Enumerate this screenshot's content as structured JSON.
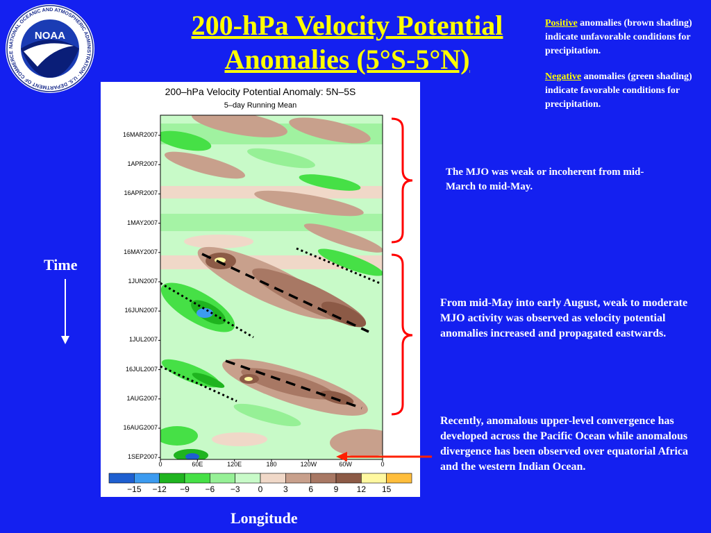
{
  "logo": {
    "text": "NOAA",
    "ring_text": "NATIONAL OCEANIC AND ATMOSPHERIC ADMINISTRATION · U.S. DEPARTMENT OF COMMERCE"
  },
  "title": {
    "line1": "200-hPa Velocity Potential",
    "line2": "Anomalies (5°S-5°N)"
  },
  "notes": {
    "positive_kw": "Positive",
    "positive_rest": " anomalies (brown shading) indicate unfavorable conditions for precipitation.",
    "negative_kw": "Negative",
    "negative_rest": " anomalies (green shading) indicate favorable conditions for precipitation."
  },
  "annotations": {
    "a1": "The MJO was weak or incoherent from mid-March to mid-May.",
    "a2": "From mid-May into early August, weak to moderate MJO activity was observed as velocity potential anomalies increased and propagated eastwards.",
    "a3": "Recently, anomalous upper-level convergence has developed across the Pacific Ocean while anomalous divergence has been observed over equatorial Africa and the western Indian Ocean."
  },
  "axis_words": {
    "time": "Time",
    "longitude": "Longitude"
  },
  "chart_data": {
    "type": "heatmap",
    "title": "200–hPa Velocity Potential Anomaly: 5N–5S",
    "subtitle": "5–day Running Mean",
    "y_ticks": [
      "16MAR2007",
      "1APR2007",
      "16APR2007",
      "1MAY2007",
      "16MAY2007",
      "1JUN2007",
      "16JUN2007",
      "1JUL2007",
      "16JUL2007",
      "1AUG2007",
      "16AUG2007",
      "1SEP2007"
    ],
    "x_ticks": [
      "0",
      "60E",
      "120E",
      "180",
      "120W",
      "60W",
      "0"
    ],
    "colorbar": {
      "levels": [
        "−15",
        "−12",
        "−9",
        "−6",
        "−3",
        "0",
        "3",
        "6",
        "9",
        "12",
        "15"
      ],
      "colors": [
        "#1e5fd0",
        "#3c9bf0",
        "#1fb41f",
        "#46e046",
        "#96f096",
        "#c8fac8",
        "#f0d8c8",
        "#c8a08c",
        "#a87864",
        "#8c5a46",
        "#fff8a0",
        "#ffbe3c"
      ]
    },
    "colors": {
      "positive": "#a87864",
      "negative": "#46e046"
    }
  }
}
